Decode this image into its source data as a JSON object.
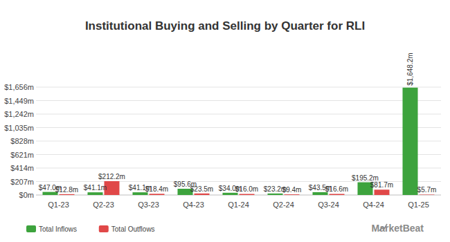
{
  "chart_data": {
    "type": "bar",
    "title": "Institutional Buying and Selling by Quarter for RLI",
    "categories": [
      "Q1-23",
      "Q2-23",
      "Q3-23",
      "Q4-23",
      "Q1-24",
      "Q2-24",
      "Q3-24",
      "Q4-24",
      "Q1-25"
    ],
    "series": [
      {
        "name": "Total Inflows",
        "color": "#3da33d",
        "values": [
          47.0,
          41.1,
          41.1,
          95.6,
          34.0,
          23.2,
          43.5,
          195.2,
          1648.2
        ],
        "value_labels": [
          "$47.0m",
          "$41.1m",
          "$41.1m",
          "$95.6m",
          "$34.0m",
          "$23.2m",
          "$43.5m",
          "$195.2m",
          "$1,648.2m"
        ]
      },
      {
        "name": "Total Outflows",
        "color": "#e04848",
        "values": [
          12.8,
          212.2,
          18.4,
          23.5,
          16.0,
          9.4,
          16.6,
          81.7,
          5.7
        ],
        "value_labels": [
          "$12.8m",
          "$212.2m",
          "$18.4m",
          "$23.5m",
          "$16.0m",
          "$9.4m",
          "$16.6m",
          "$81.7m",
          "$5.7m"
        ]
      }
    ],
    "ylim": [
      0,
      1656
    ],
    "yticks": [
      {
        "value": 0,
        "label": "$0m"
      },
      {
        "value": 207,
        "label": "$207m"
      },
      {
        "value": 414,
        "label": "$414m"
      },
      {
        "value": 621,
        "label": "$621m"
      },
      {
        "value": 828,
        "label": "$828m"
      },
      {
        "value": 1035,
        "label": "$1,035m"
      },
      {
        "value": 1242,
        "label": "$1,242m"
      },
      {
        "value": 1449,
        "label": "$1,449m"
      },
      {
        "value": 1656,
        "label": "$1,656m"
      }
    ],
    "grid": true,
    "data_labels": true,
    "legend": "bottom-left",
    "annotations": [
      "MarketBeat"
    ]
  }
}
